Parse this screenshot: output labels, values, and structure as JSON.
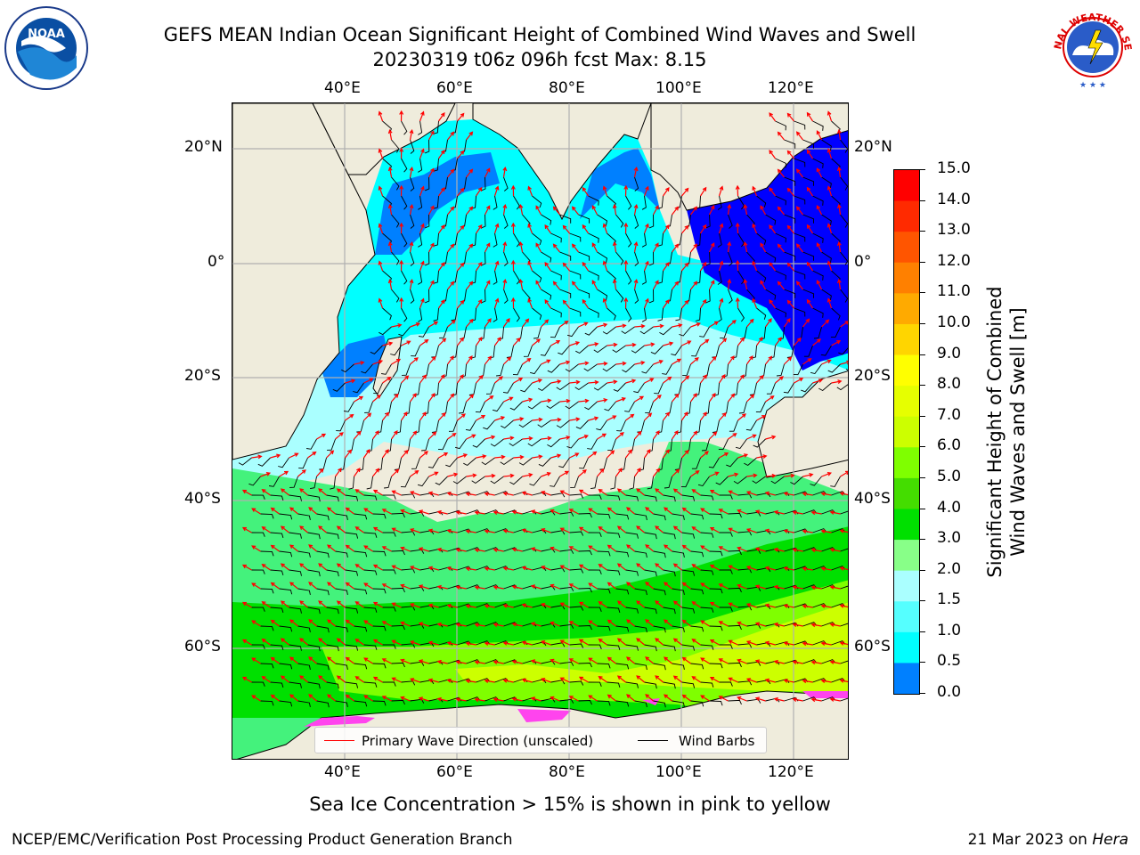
{
  "title_line1": "GEFS MEAN Indian Ocean Significant Height of Combined Wind Waves and Swell",
  "title_line2": "20230319 t06z 096h fcst   Max: 8.15",
  "lon_ticks": [
    "40°E",
    "60°E",
    "80°E",
    "100°E",
    "120°E"
  ],
  "lat_ticks": [
    "20°N",
    "0°",
    "20°S",
    "40°S",
    "60°S"
  ],
  "colorbar": {
    "label_line1": "Significant Height of Combined",
    "label_line2": "Wind Waves and Swell [m]",
    "ticks": [
      "15.0",
      "14.0",
      "13.0",
      "12.0",
      "11.0",
      "10.0",
      "9.0",
      "8.0",
      "7.0",
      "6.0",
      "5.0",
      "4.0",
      "3.0",
      "2.0",
      "1.5",
      "1.0",
      "0.5",
      "0.0"
    ],
    "colors": [
      "#ff0000",
      "#ff2a00",
      "#ff5500",
      "#ff8000",
      "#ffaa00",
      "#ffd500",
      "#ffff00",
      "#e6ff00",
      "#ccff00",
      "#7fff00",
      "#44dd00",
      "#00e000",
      "#44f27c",
      "#88ff88",
      "#aaffff",
      "#55ffff",
      "#00ffff",
      "#0080ff",
      "#0000ff"
    ]
  },
  "legend": {
    "wave_label": "Primary Wave Direction (unscaled)",
    "wind_label": "Wind Barbs",
    "wave_color": "#ff0000",
    "wind_color": "#000000"
  },
  "caption": "Sea Ice Concentration > 15% is shown in pink to yellow",
  "footer_left": "NCEP/EMC/Verification Post Processing Product Generation Branch",
  "footer_right_prefix": "21 Mar 2023 on ",
  "footer_right_host": "Hera",
  "logos": {
    "noaa_text": "NOAA",
    "nws_text": "NATIONAL WEATHER SERVICE"
  },
  "map_colors": {
    "land": "#efecdc",
    "sea_0_1": "#0000ff",
    "sea_1": "#0080ff",
    "sea_1_5": "#00ffff",
    "sea_2": "#aaffff",
    "sea_3": "#44f27c",
    "sea_4": "#00e000",
    "sea_5": "#7fff00",
    "sea_7": "#ccff00",
    "ice": "#ff44ee"
  }
}
